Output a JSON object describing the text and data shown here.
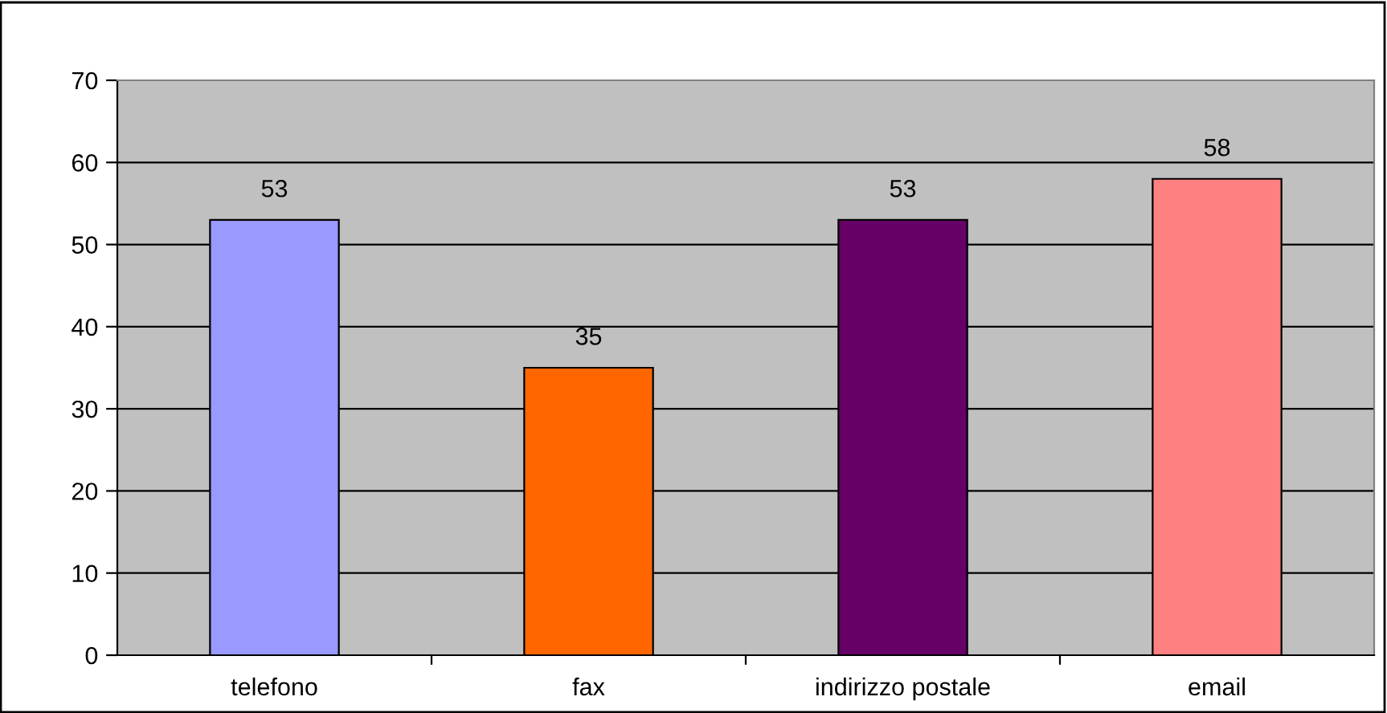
{
  "chart_data": {
    "type": "bar",
    "categories": [
      "telefono",
      "fax",
      "indirizzo postale",
      "email"
    ],
    "values": [
      53,
      35,
      53,
      58
    ],
    "colors": [
      "#9999ff",
      "#ff6600",
      "#660066",
      "#ff8080"
    ],
    "ylim": [
      0,
      70
    ],
    "yticks": [
      0,
      10,
      20,
      30,
      40,
      50,
      60,
      70
    ],
    "grid": "y",
    "data_labels": true
  }
}
